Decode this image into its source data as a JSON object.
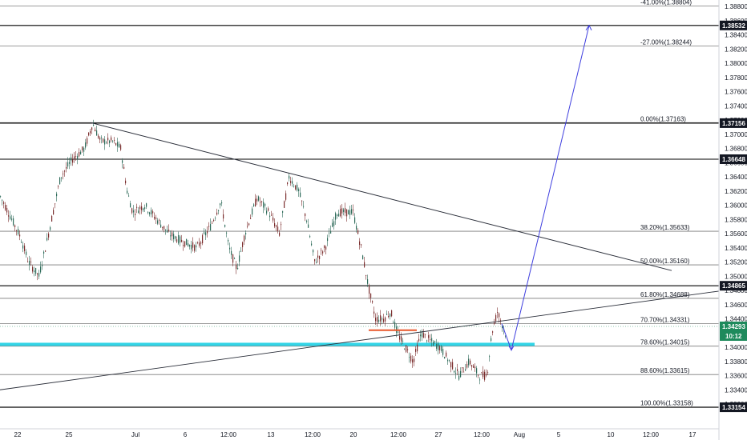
{
  "chart_data": {
    "type": "candlestick",
    "symbol_visible": false,
    "y_axis": {
      "range": [
        1.33,
        1.389
      ],
      "ticks": [
        "1.38800",
        "1.38600",
        "1.38400",
        "1.38200",
        "1.38000",
        "1.37800",
        "1.37600",
        "1.37400",
        "1.37200",
        "1.37000",
        "1.36800",
        "1.36600",
        "1.36400",
        "1.36200",
        "1.36000",
        "1.35800",
        "1.35600",
        "1.35400",
        "1.35200",
        "1.35000",
        "1.34800",
        "1.34600",
        "1.34400",
        "1.34200",
        "1.34000",
        "1.33800",
        "1.33600",
        "1.33400",
        "1.33200"
      ]
    },
    "x_axis": {
      "ticks": [
        "22",
        "25",
        "Jul",
        "6",
        "12:00",
        "13",
        "12:00",
        "20",
        "12:00",
        "27",
        "12:00",
        "Aug",
        "5",
        "10",
        "12:00",
        "17"
      ]
    },
    "horizontal_levels": [
      {
        "price": 1.38532,
        "label": "1.38532"
      },
      {
        "price": 1.37156,
        "label": "1.37156"
      },
      {
        "price": 1.36648,
        "label": "1.36648"
      },
      {
        "price": 1.34865,
        "label": "1.34865"
      },
      {
        "price": 1.33154,
        "label": "1.33154"
      }
    ],
    "fib_levels": [
      {
        "label": "-41.00%(1.38804)",
        "price": 1.38804
      },
      {
        "label": "-27.00%(1.38244)",
        "price": 1.38244
      },
      {
        "label": "0.00%(1.37163)",
        "price": 1.37163
      },
      {
        "label": "38.20%(1.35633)",
        "price": 1.35633
      },
      {
        "label": "50.00%(1.35160)",
        "price": 1.3516
      },
      {
        "label": "61.80%(1.34688)",
        "price": 1.34688
      },
      {
        "label": "70.70%(1.34331)",
        "price": 1.34331
      },
      {
        "label": "78.60%(1.34015)",
        "price": 1.34015
      },
      {
        "label": "88.60%(1.33615)",
        "price": 1.33615
      },
      {
        "label": "100.00%(1.33158)",
        "price": 1.33158
      }
    ],
    "current_price": {
      "label": "1.34293",
      "countdown": "10:12",
      "color": "#1e8a5c"
    },
    "colors": {
      "up": "#26a69a",
      "down": "#ef5350",
      "projection": "#3f3fdf",
      "zone": "#33d4e6",
      "marker": "#e8572b"
    }
  }
}
